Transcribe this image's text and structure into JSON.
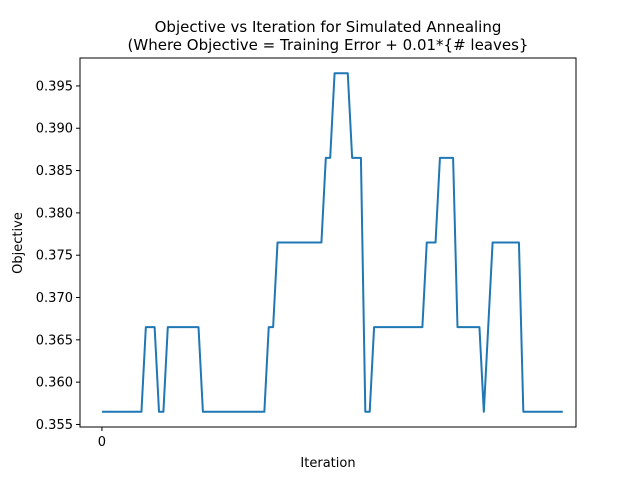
{
  "chart_data": {
    "type": "line",
    "title_line1": "Objective vs Iteration for Simulated Annealing",
    "title_line2": "(Where Objective = Training Error + 0.01*{# leaves}",
    "xlabel": "Iteration",
    "ylabel": "Objective",
    "ylim": [
      0.3547,
      0.3983
    ],
    "xlim": [
      -5,
      108
    ],
    "xticks": [
      0
    ],
    "yticks": [
      0.355,
      0.36,
      0.365,
      0.37,
      0.375,
      0.38,
      0.385,
      0.39,
      0.395
    ],
    "ytick_labels": [
      "0.355",
      "0.360",
      "0.365",
      "0.370",
      "0.375",
      "0.380",
      "0.385",
      "0.390",
      "0.395"
    ],
    "grid": false,
    "series": [
      {
        "color": "#1f77b4",
        "x": [
          0,
          9,
          10,
          12,
          13,
          14,
          15,
          22,
          23,
          37,
          38,
          39,
          40,
          50,
          51,
          52,
          53,
          56,
          57,
          59,
          60,
          61,
          62,
          73,
          74,
          76,
          77,
          80,
          81,
          82,
          83,
          86,
          87,
          89,
          91,
          95,
          96,
          105
        ],
        "y": [
          0.3565,
          0.3565,
          0.3665,
          0.3665,
          0.3565,
          0.3565,
          0.3665,
          0.3665,
          0.3565,
          0.3565,
          0.3665,
          0.3665,
          0.3765,
          0.3765,
          0.3865,
          0.3865,
          0.3965,
          0.3965,
          0.3865,
          0.3865,
          0.3565,
          0.3565,
          0.3665,
          0.3665,
          0.3765,
          0.3765,
          0.3865,
          0.3865,
          0.3665,
          0.3665,
          0.3665,
          0.3665,
          0.3565,
          0.3765,
          0.3765,
          0.3765,
          0.3565,
          0.3565
        ]
      }
    ]
  }
}
